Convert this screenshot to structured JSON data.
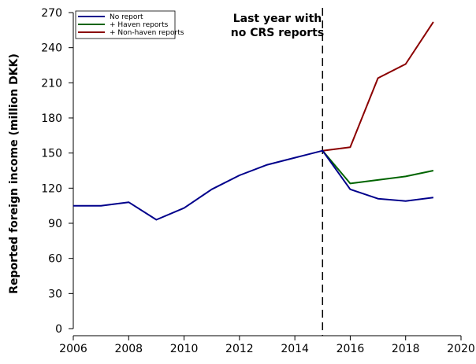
{
  "chart_data": {
    "type": "line",
    "title": "",
    "xlabel": "",
    "ylabel": "Reported foreign income (million DKK)",
    "xlim": [
      2006,
      2020
    ],
    "ylim": [
      0,
      270
    ],
    "x_ticks": [
      "2006",
      "2008",
      "2010",
      "2012",
      "2014",
      "2016",
      "2018",
      "2020"
    ],
    "y_ticks": [
      "0",
      "30",
      "60",
      "90",
      "120",
      "150",
      "180",
      "210",
      "240",
      "270"
    ],
    "x_tick_values": [
      2006,
      2008,
      2010,
      2012,
      2014,
      2016,
      2018,
      2020
    ],
    "y_tick_values": [
      0,
      30,
      60,
      90,
      120,
      150,
      180,
      210,
      240,
      270
    ],
    "grid": false,
    "legend_position": "top-left",
    "vline": {
      "x": 2015,
      "style": "dashed",
      "label_line1": "Last year with",
      "label_line2": "no CRS reports"
    },
    "series": [
      {
        "name": "No report",
        "color": "#00008b",
        "points": [
          {
            "x": 2006,
            "y": 105
          },
          {
            "x": 2007,
            "y": 105
          },
          {
            "x": 2008,
            "y": 108
          },
          {
            "x": 2009,
            "y": 93
          },
          {
            "x": 2010,
            "y": 103
          },
          {
            "x": 2011,
            "y": 119
          },
          {
            "x": 2012,
            "y": 131
          },
          {
            "x": 2013,
            "y": 140
          },
          {
            "x": 2014,
            "y": 146
          },
          {
            "x": 2015,
            "y": 152
          },
          {
            "x": 2016,
            "y": 119
          },
          {
            "x": 2017,
            "y": 111
          },
          {
            "x": 2018,
            "y": 109
          },
          {
            "x": 2019,
            "y": 112
          }
        ]
      },
      {
        "name": "+ Haven reports",
        "color": "#006400",
        "points": [
          {
            "x": 2015,
            "y": 152
          },
          {
            "x": 2016,
            "y": 124
          },
          {
            "x": 2017,
            "y": 127
          },
          {
            "x": 2018,
            "y": 130
          },
          {
            "x": 2019,
            "y": 135
          }
        ]
      },
      {
        "name": "+ Non-haven reports",
        "color": "#8b0000",
        "points": [
          {
            "x": 2015,
            "y": 152
          },
          {
            "x": 2016,
            "y": 155
          },
          {
            "x": 2017,
            "y": 214
          },
          {
            "x": 2018,
            "y": 226
          },
          {
            "x": 2019,
            "y": 262
          }
        ]
      }
    ]
  }
}
